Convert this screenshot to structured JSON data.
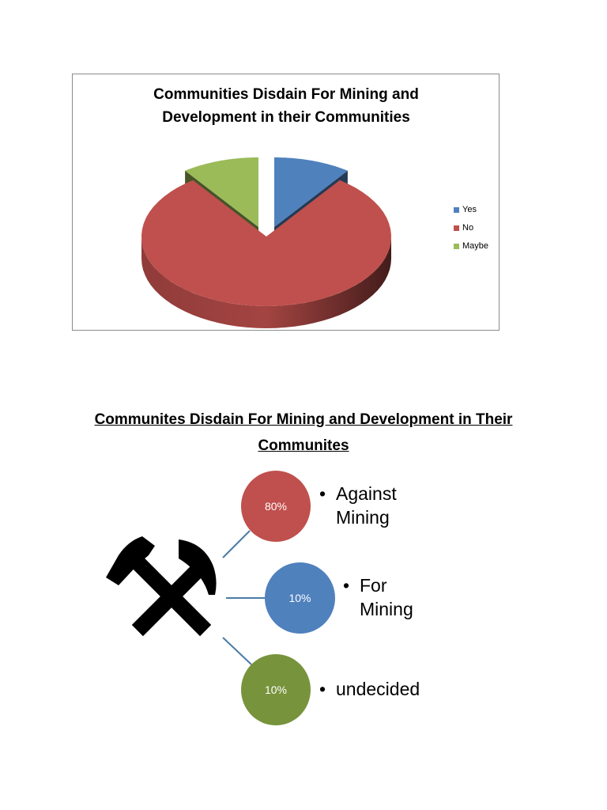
{
  "chart_data": [
    {
      "type": "pie",
      "title": "Communities Disdain For Mining and Development in their Communities",
      "categories": [
        "Yes",
        "No",
        "Maybe"
      ],
      "values": [
        10,
        80,
        10
      ],
      "colors": [
        "#4f81bd",
        "#c0504d",
        "#9bbb59"
      ],
      "legend_position": "right"
    }
  ],
  "diagram": {
    "heading": "Communites Disdain For Mining and Development in Their Communites",
    "center_icon": "hammer-and-pick-icon",
    "items": [
      {
        "value": "80%",
        "label": "Against Mining",
        "color": "#c0504d"
      },
      {
        "value": "10%",
        "label": "For Mining",
        "color": "#4f81bd"
      },
      {
        "value": "10%",
        "label": "undecided",
        "color": "#77933c"
      }
    ],
    "bullet": "•",
    "connector_color": "#4a7ba7"
  }
}
